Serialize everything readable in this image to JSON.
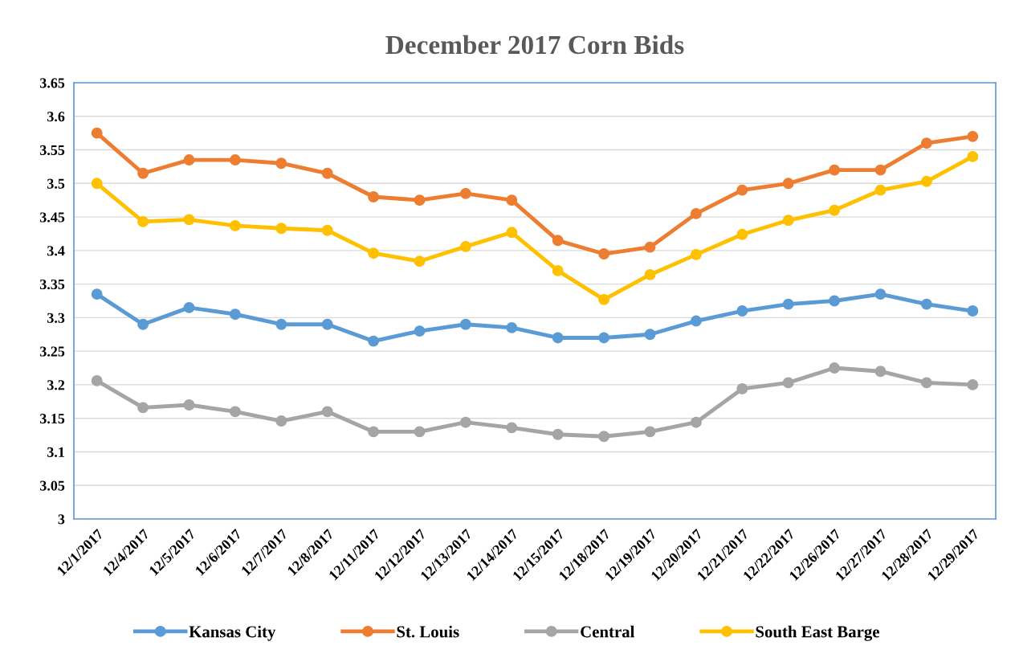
{
  "chart_data": {
    "type": "line",
    "title": "December 2017 Corn Bids",
    "categories": [
      "12/1/2017",
      "12/4/2017",
      "12/5/2017",
      "12/6/2017",
      "12/7/2017",
      "12/8/2017",
      "12/11/2017",
      "12/12/2017",
      "12/13/2017",
      "12/14/2017",
      "12/15/2017",
      "12/18/2017",
      "12/19/2017",
      "12/20/2017",
      "12/21/2017",
      "12/22/2017",
      "12/26/2017",
      "12/27/2017",
      "12/28/2017",
      "12/29/2017"
    ],
    "series": [
      {
        "name": "Kansas City",
        "color": "#5b9bd5",
        "values": [
          3.335,
          3.29,
          3.315,
          3.305,
          3.29,
          3.29,
          3.265,
          3.28,
          3.29,
          3.285,
          3.27,
          3.27,
          3.275,
          3.295,
          3.31,
          3.32,
          3.325,
          3.335,
          3.32,
          3.31
        ]
      },
      {
        "name": "St. Louis",
        "color": "#ed7d31",
        "values": [
          3.575,
          3.515,
          3.535,
          3.535,
          3.53,
          3.515,
          3.48,
          3.475,
          3.485,
          3.475,
          3.415,
          3.395,
          3.405,
          3.455,
          3.49,
          3.5,
          3.52,
          3.52,
          3.56,
          3.57
        ]
      },
      {
        "name": "Central",
        "color": "#a5a5a5",
        "values": [
          3.206,
          3.166,
          3.17,
          3.16,
          3.146,
          3.16,
          3.13,
          3.13,
          3.144,
          3.136,
          3.126,
          3.123,
          3.13,
          3.144,
          3.194,
          3.203,
          3.225,
          3.22,
          3.203,
          3.2
        ]
      },
      {
        "name": "South East Barge",
        "color": "#ffc000",
        "values": [
          3.5,
          3.443,
          3.446,
          3.437,
          3.433,
          3.43,
          3.396,
          3.384,
          3.406,
          3.427,
          3.37,
          3.327,
          3.364,
          3.394,
          3.424,
          3.445,
          3.46,
          3.49,
          3.503,
          3.54
        ]
      }
    ],
    "ylim": [
      3,
      3.65
    ],
    "yticks": [
      3,
      3.05,
      3.1,
      3.15,
      3.2,
      3.25,
      3.3,
      3.35,
      3.4,
      3.45,
      3.5,
      3.55,
      3.6,
      3.65
    ],
    "grid": "y",
    "legend": "bottom",
    "marker": "circle",
    "line_style": "solid"
  }
}
